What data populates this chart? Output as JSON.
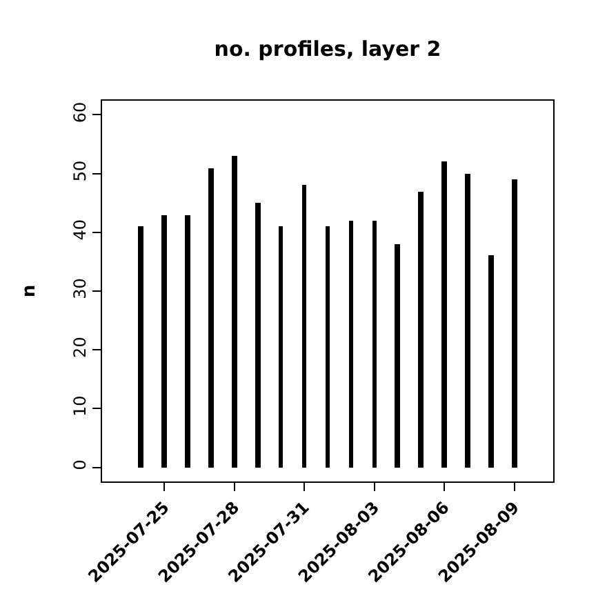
{
  "chart_data": {
    "type": "bar",
    "title": "no. profiles, layer 2",
    "ylabel": "n",
    "color": "#000000",
    "x": [
      "2025-07-24",
      "2025-07-25",
      "2025-07-26",
      "2025-07-27",
      "2025-07-28",
      "2025-07-29",
      "2025-07-30",
      "2025-07-31",
      "2025-08-01",
      "2025-08-02",
      "2025-08-03",
      "2025-08-04",
      "2025-08-05",
      "2025-08-06",
      "2025-08-07",
      "2025-08-08",
      "2025-08-09"
    ],
    "values": [
      41,
      43,
      43,
      51,
      53,
      45,
      41,
      48,
      41,
      42,
      42,
      38,
      47,
      52,
      50,
      36,
      49
    ],
    "xlim": [
      "2025-07-22T08:00",
      "2025-08-10T16:00"
    ],
    "xticks": [
      {
        "value": "2025-07-25",
        "label": "2025-07-25"
      },
      {
        "value": "2025-07-28",
        "label": "2025-07-28"
      },
      {
        "value": "2025-07-31",
        "label": "2025-07-31"
      },
      {
        "value": "2025-08-03",
        "label": "2025-08-03"
      },
      {
        "value": "2025-08-06",
        "label": "2025-08-06"
      },
      {
        "value": "2025-08-09",
        "label": "2025-08-09"
      }
    ],
    "ylim": [
      -2.4,
      62.4
    ],
    "yticks": [
      0,
      10,
      20,
      30,
      40,
      50,
      60
    ]
  }
}
